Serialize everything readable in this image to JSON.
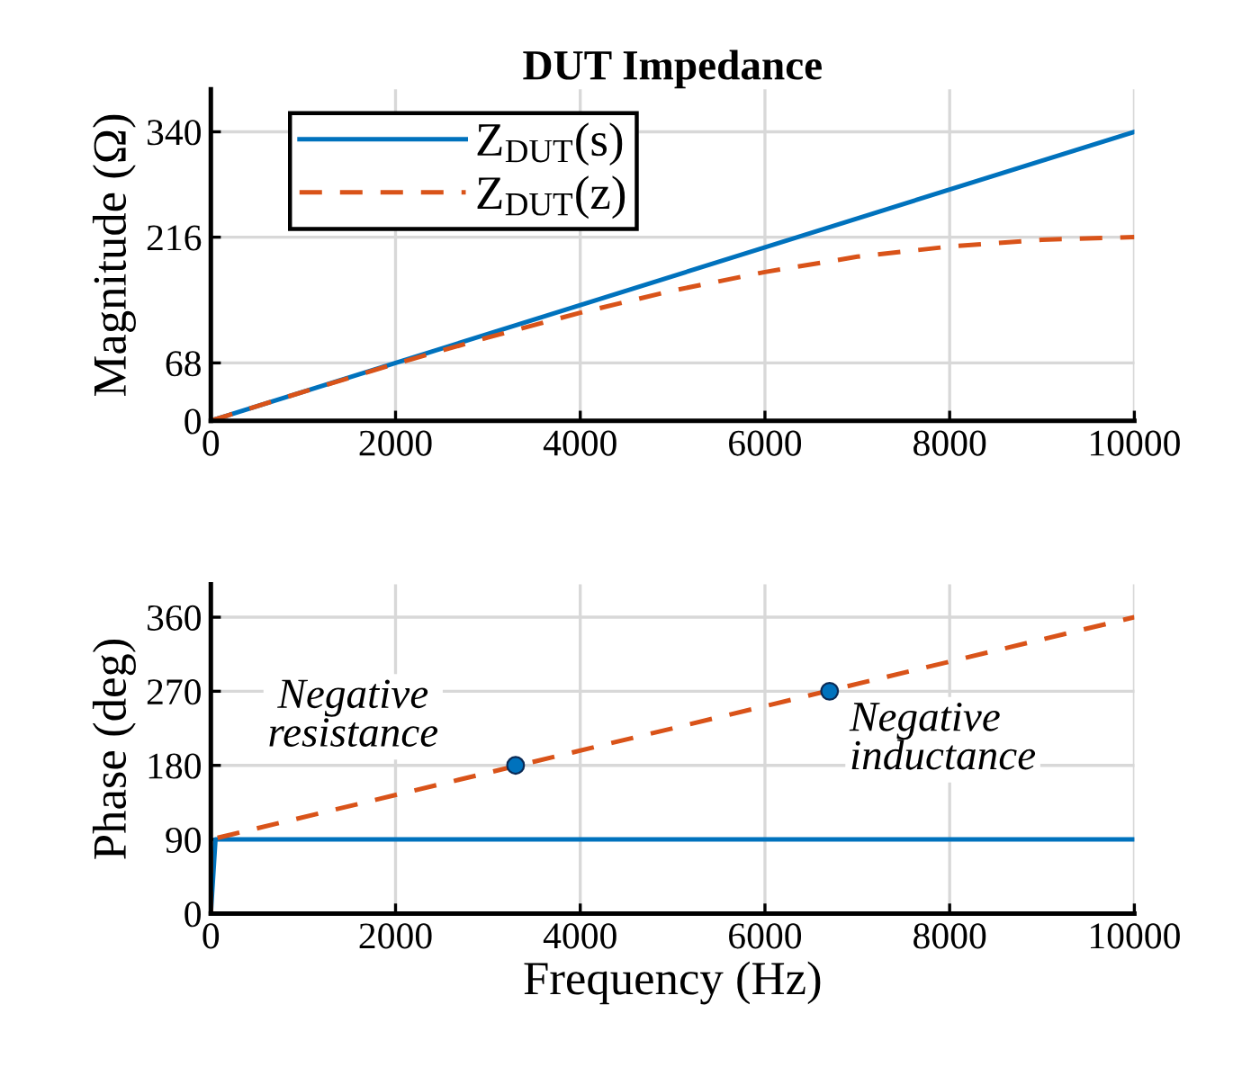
{
  "chart_data": [
    {
      "type": "line",
      "title": "DUT Impedance",
      "ylabel": "Magnitude (Ω)",
      "xlim": [
        0,
        10000
      ],
      "xticks": [
        0,
        2000,
        4000,
        6000,
        8000,
        10000
      ],
      "ylim": [
        0,
        390
      ],
      "yticks": [
        0,
        68,
        216,
        340
      ],
      "grid": true,
      "legend": "top left",
      "series": [
        {
          "name": "Z$_{DUT}$(s)",
          "color": "#0072bd",
          "line_style": "solid",
          "x": [
            0,
            10000
          ],
          "values": [
            0,
            340
          ]
        },
        {
          "name": "Z$_{DUT}$(z)",
          "color": "#d95319",
          "line_style": "dashed",
          "x": [
            0,
            1000,
            2000,
            3000,
            4000,
            5000,
            6000,
            7000,
            8000,
            9000,
            10000
          ],
          "values": [
            0,
            34,
            67,
            98,
            127,
            153,
            175,
            193,
            205,
            213,
            216
          ]
        }
      ]
    },
    {
      "type": "line",
      "xlabel": "Frequency (Hz)",
      "ylabel": "Phase (deg)",
      "xlim": [
        0,
        10000
      ],
      "xticks": [
        0,
        2000,
        4000,
        6000,
        8000,
        10000
      ],
      "ylim": [
        0,
        400
      ],
      "yticks": [
        0,
        90,
        180,
        270,
        360
      ],
      "grid": true,
      "annotations": [
        {
          "text": "Negative\nresistance",
          "x": 3300,
          "y": 180
        },
        {
          "text": "Negative\ninductance",
          "x": 6700,
          "y": 270
        }
      ],
      "series": [
        {
          "color": "#0072bd",
          "line_style": "solid",
          "x": [
            0,
            50,
            10000
          ],
          "values": [
            0,
            90,
            90
          ]
        },
        {
          "color": "#d95319",
          "line_style": "dashed",
          "x": [
            0,
            0,
            10000
          ],
          "values": [
            0,
            90,
            360
          ]
        },
        {
          "type": "scatter",
          "color": "#0072bd",
          "marker": "circle",
          "x": [
            3300,
            6700
          ],
          "values": [
            180,
            270
          ]
        }
      ]
    }
  ]
}
